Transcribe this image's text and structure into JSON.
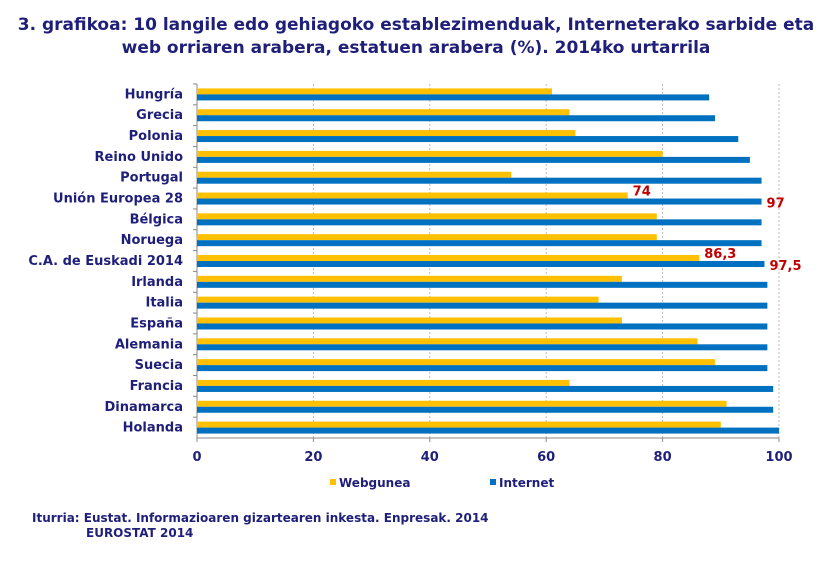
{
  "chart_data": {
    "type": "bar",
    "orientation": "horizontal",
    "title": "3. grafikoa: 10 langile edo gehiagoko establezimenduak, Interneterako sarbide eta web orriaren arabera, estatuen arabera (%). 2014ko urtarrila",
    "categories": [
      "Hungría",
      "Grecia",
      "Polonia",
      "Reino Unido",
      "Portugal",
      "Unión Europea 28",
      "Bélgica",
      "Noruega",
      "C.A. de Euskadi 2014",
      "Irlanda",
      "Italia",
      "España",
      "Alemania",
      "Suecia",
      "Francia",
      "Dinamarca",
      "Holanda"
    ],
    "series": [
      {
        "name": "Webgunea",
        "color": "#FFC000",
        "values": [
          61,
          64,
          65,
          80,
          54,
          74,
          79,
          79,
          86.3,
          73,
          69,
          73,
          86,
          89,
          64,
          91,
          90
        ]
      },
      {
        "name": "Internet",
        "color": "#0070C0",
        "values": [
          88,
          89,
          93,
          95,
          97,
          97,
          97,
          97,
          97.5,
          98,
          98,
          98,
          98,
          98,
          99,
          99,
          100
        ]
      }
    ],
    "data_labels": [
      {
        "category": "Unión Europea 28",
        "series": "Webgunea",
        "text": "74"
      },
      {
        "category": "Unión Europea 28",
        "series": "Internet",
        "text": "97"
      },
      {
        "category": "C.A. de Euskadi 2014",
        "series": "Webgunea",
        "text": "86,3"
      },
      {
        "category": "C.A. de Euskadi 2014",
        "series": "Internet",
        "text": "97,5"
      }
    ],
    "xlim": [
      0,
      100
    ],
    "xticks": [
      0,
      20,
      40,
      60,
      80,
      100
    ],
    "grid": "vertical dashed",
    "legend": "bottom",
    "label_color": "#C00000"
  },
  "source": {
    "line1": "Iturria: Eustat. Informazioaren gizartearen inkesta. Enpresak. 2014",
    "line2": "EUROSTAT 2014"
  }
}
